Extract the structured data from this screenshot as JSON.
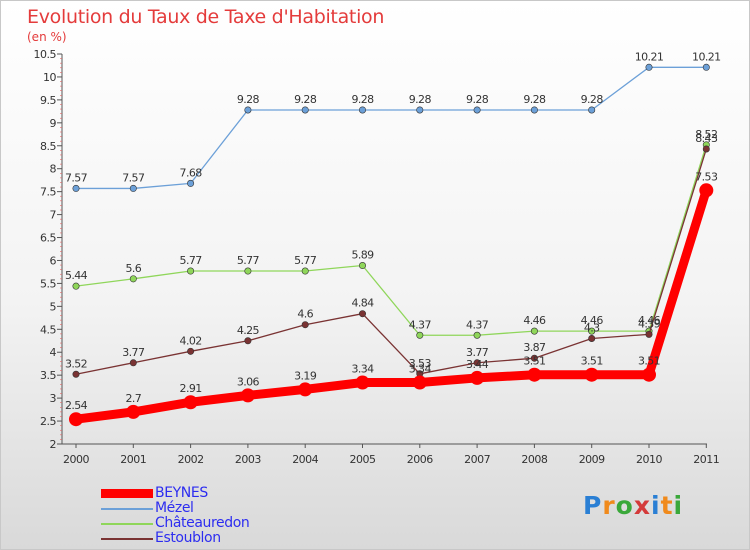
{
  "header": {
    "title": "Evolution du Taux de Taxe d'Habitation",
    "unit": "(en %)"
  },
  "logo": {
    "text": "Proxiti",
    "colors": [
      "#2a7fd4",
      "#f08a1c",
      "#3aa83a",
      "#d43a3a",
      "#2a7fd4",
      "#f08a1c",
      "#3aa83a"
    ]
  },
  "chart_data": {
    "type": "line",
    "title": "Evolution du Taux de Taxe d'Habitation",
    "subtitle": "(en %)",
    "x": [
      "2000",
      "2001",
      "2002",
      "2003",
      "2004",
      "2005",
      "2006",
      "2007",
      "2008",
      "2009",
      "2010",
      "2011"
    ],
    "ylim": [
      2,
      10.5
    ],
    "yticks": [
      "2",
      "2.5",
      "3",
      "3.5",
      "4",
      "4.5",
      "5",
      "5.5",
      "6",
      "6.5",
      "7",
      "7.5",
      "8",
      "8.5",
      "9",
      "9.5",
      "10",
      "10.5"
    ],
    "grid": false,
    "legend_position": "bottom-left",
    "series": [
      {
        "name": "BEYNES",
        "color": "#ff0000",
        "thick": true,
        "values": [
          2.54,
          2.7,
          2.91,
          3.06,
          3.19,
          3.34,
          3.34,
          3.44,
          3.51,
          3.51,
          3.51,
          7.53
        ],
        "labels": [
          "2.54",
          "2.7",
          "2.91",
          "3.06",
          "3.19",
          "3.34",
          "3.34",
          "3.44",
          "3.51",
          "3.51",
          "3.51",
          "7.53"
        ]
      },
      {
        "name": "Mézel",
        "color": "#6ca0d8",
        "thick": false,
        "values": [
          7.57,
          7.57,
          7.68,
          9.28,
          9.28,
          9.28,
          9.28,
          9.28,
          9.28,
          9.28,
          10.21,
          10.21
        ],
        "labels": [
          "7.57",
          "7.57",
          "7.68",
          "9.28",
          "9.28",
          "9.28",
          "9.28",
          "9.28",
          "9.28",
          "9.28",
          "10.21",
          "10.21"
        ]
      },
      {
        "name": "Châteauredon",
        "color": "#8fd65a",
        "thick": false,
        "values": [
          5.44,
          5.6,
          5.77,
          5.77,
          5.77,
          5.89,
          4.37,
          4.37,
          4.46,
          4.46,
          4.46,
          8.52
        ],
        "labels": [
          "5.44",
          "5.6",
          "5.77",
          "5.77",
          "5.77",
          "5.89",
          "4.37",
          "4.37",
          "4.46",
          "4.46",
          "4.46",
          "8.52"
        ]
      },
      {
        "name": "Estoublon",
        "color": "#7a3333",
        "thick": false,
        "values": [
          3.52,
          3.77,
          4.02,
          4.25,
          4.6,
          4.84,
          3.53,
          3.77,
          3.87,
          4.3,
          4.39,
          8.43
        ],
        "labels": [
          "3.52",
          "3.77",
          "4.02",
          "4.25",
          "4.6",
          "4.84",
          "3.53",
          "3.77",
          "3.87",
          "4.3",
          "4.39",
          "8.43"
        ]
      }
    ]
  }
}
